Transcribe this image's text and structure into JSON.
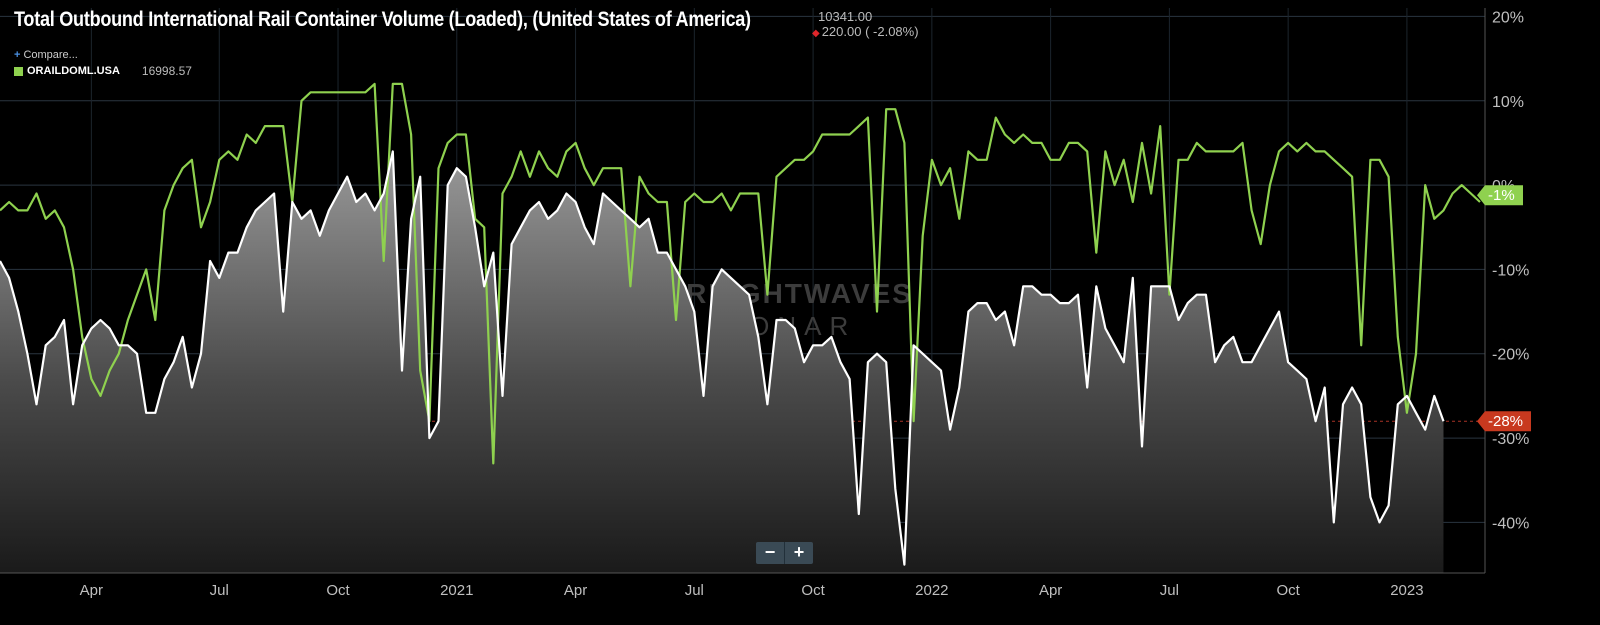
{
  "header": {
    "title": "Total Outbound International Rail Container Volume (Loaded), (United States of America)",
    "last_value": "10341.00",
    "change": "220.00 ( -2.08%)",
    "compare_label": "Compare...",
    "legend_symbol": "ORAILDOML.USA",
    "legend_value": "16998.57"
  },
  "watermark": {
    "line1": "FREIGHTWAVES",
    "line2": "SONAR"
  },
  "zoom": {
    "minus": "−",
    "plus": "+"
  },
  "colors": {
    "green": "#8fd14f",
    "white": "#ffffff",
    "red_tag": "#c8391f",
    "bg": "#000000"
  },
  "chart_data": {
    "type": "line",
    "y_unit": "%",
    "ylim": [
      -46,
      21
    ],
    "y_ticks": [
      20,
      10,
      0,
      -10,
      -20,
      -30,
      -40
    ],
    "y_tick_labels": [
      "20%",
      "10%",
      "0%",
      "-10%",
      "-20%",
      "-30%",
      "-40%"
    ],
    "x_ticks": [
      "Apr",
      "Jul",
      "Oct",
      "2021",
      "Apr",
      "Jul",
      "Oct",
      "2022",
      "Apr",
      "Jul",
      "Oct",
      "2023"
    ],
    "grid": true,
    "reference_line": -28,
    "series": [
      {
        "name": "ORAILDOML.USA",
        "color": "#8fd14f",
        "last_label": "-1%",
        "values": [
          -3,
          -2,
          -3,
          -3,
          -1,
          -4,
          -3,
          -5,
          -10,
          -18,
          -23,
          -25,
          -22,
          -20,
          -16,
          -13,
          -10,
          -16,
          -3,
          0,
          2,
          3,
          -5,
          -2,
          3,
          4,
          3,
          6,
          5,
          7,
          7,
          7,
          -2,
          10,
          11,
          11,
          11,
          11,
          11,
          11,
          11,
          12,
          -9,
          12,
          12,
          6,
          -22,
          -28,
          2,
          5,
          6,
          6,
          -4,
          -5,
          -33,
          -1,
          1,
          4,
          1,
          4,
          2,
          1,
          4,
          5,
          2,
          0,
          2,
          2,
          2,
          -12,
          1,
          -1,
          -2,
          -2,
          -16,
          -2,
          -1,
          -2,
          -2,
          -1,
          -3,
          -1,
          -1,
          -1,
          -13,
          1,
          2,
          3,
          3,
          4,
          6,
          6,
          6,
          6,
          7,
          8,
          -15,
          9,
          9,
          5,
          -28,
          -6,
          3,
          0,
          2,
          -4,
          4,
          3,
          3,
          8,
          6,
          5,
          6,
          5,
          5,
          3,
          3,
          5,
          5,
          4,
          -8,
          4,
          0,
          3,
          -2,
          5,
          -1,
          7,
          -13,
          3,
          3,
          5,
          4,
          4,
          4,
          4,
          5,
          -3,
          -7,
          0,
          4,
          5,
          4,
          5,
          4,
          4,
          3,
          2,
          1,
          -19,
          3,
          3,
          1,
          -18,
          -27,
          -20,
          0,
          -4,
          -3,
          -1,
          0,
          -1,
          -2
        ]
      },
      {
        "name": "",
        "color": "#ffffff",
        "last_label": "-28%",
        "values": [
          -9,
          -11,
          -15,
          -20,
          -26,
          -19,
          -18,
          -16,
          -26,
          -19,
          -17,
          -16,
          -17,
          -19,
          -19,
          -20,
          -27,
          -27,
          -23,
          -21,
          -18,
          -24,
          -20,
          -9,
          -11,
          -8,
          -8,
          -5,
          -3,
          -2,
          -1,
          -15,
          -2,
          -4,
          -3,
          -6,
          -3,
          -1,
          1,
          -2,
          -1,
          -3,
          -1,
          4,
          -22,
          -4,
          1,
          -30,
          -28,
          0,
          2,
          1,
          -5,
          -12,
          -8,
          -25,
          -7,
          -5,
          -3,
          -2,
          -4,
          -3,
          -1,
          -2,
          -5,
          -7,
          -1,
          -2,
          -3,
          -4,
          -5,
          -4,
          -8,
          -8,
          -10,
          -12,
          -15,
          -25,
          -12,
          -10,
          -11,
          -12,
          -13,
          -18,
          -26,
          -16,
          -16,
          -17,
          -21,
          -19,
          -19,
          -18,
          -21,
          -23,
          -39,
          -21,
          -20,
          -21,
          -36,
          -45,
          -19,
          -20,
          -21,
          -22,
          -29,
          -24,
          -15,
          -14,
          -14,
          -16,
          -15,
          -19,
          -12,
          -12,
          -13,
          -13,
          -14,
          -14,
          -13,
          -24,
          -12,
          -17,
          -19,
          -21,
          -11,
          -31,
          -12,
          -12,
          -12,
          -16,
          -14,
          -13,
          -13,
          -21,
          -19,
          -18,
          -21,
          -21,
          -19,
          -17,
          -15,
          -21,
          -22,
          -23,
          -28,
          -24,
          -40,
          -26,
          -24,
          -26,
          -37,
          -40,
          -38,
          -26,
          -25,
          -27,
          -29,
          -25,
          -28
        ]
      }
    ]
  }
}
